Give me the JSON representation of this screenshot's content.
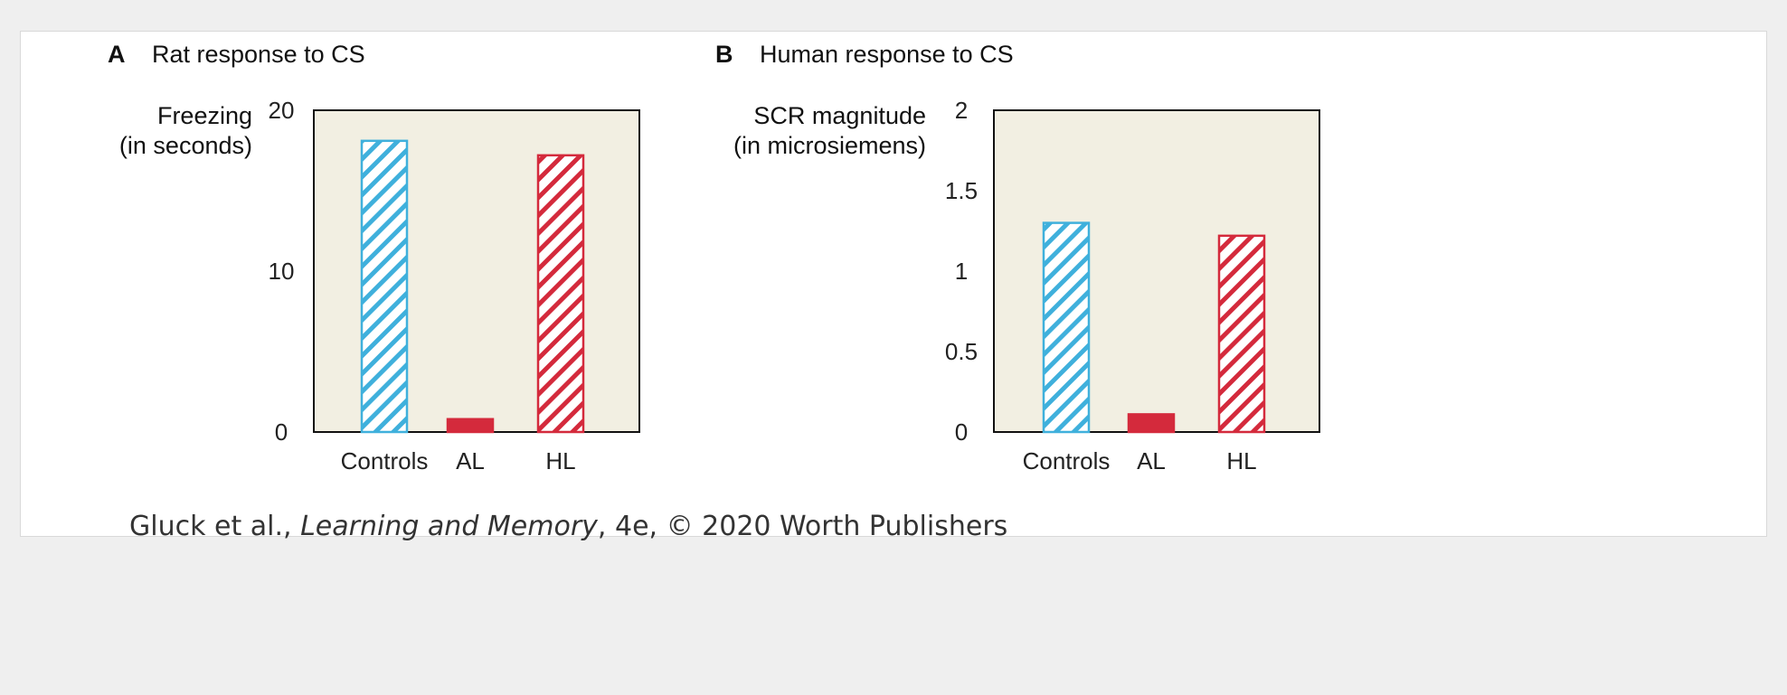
{
  "colors": {
    "controls": "#3fb0dc",
    "lesion": "#d42a3c",
    "plot_background": "#f2efe2"
  },
  "credit": {
    "prefix": "Gluck et al., ",
    "book": "Learning and Memory",
    "suffix": ", 4e, © 2020 Worth Publishers"
  },
  "chart_data": [
    {
      "type": "bar",
      "panel": "A",
      "title": "Rat response to CS",
      "ylabel_lines": [
        "Freezing",
        "(in seconds)"
      ],
      "ylim": [
        0,
        20
      ],
      "yticks": [
        "0",
        "10",
        "20"
      ],
      "ytick_values": [
        0,
        10,
        20
      ],
      "categories": [
        "Controls",
        "AL",
        "HL"
      ],
      "values": [
        18.1,
        0.8,
        17.2
      ],
      "bar_styles": [
        "hatched-blue",
        "solid-red",
        "hatched-red"
      ],
      "grid": false,
      "legend": "none"
    },
    {
      "type": "bar",
      "panel": "B",
      "title": "Human response to CS",
      "ylabel_lines": [
        "SCR magnitude",
        "(in microsiemens)"
      ],
      "ylim": [
        0,
        2
      ],
      "yticks": [
        "0",
        "0.5",
        "1",
        "1.5",
        "2"
      ],
      "ytick_values": [
        0,
        0.5,
        1,
        1.5,
        2
      ],
      "categories": [
        "Controls",
        "AL",
        "HL"
      ],
      "values": [
        1.3,
        0.11,
        1.22
      ],
      "bar_styles": [
        "hatched-blue",
        "solid-red",
        "hatched-red"
      ],
      "grid": false,
      "legend": "none"
    }
  ]
}
